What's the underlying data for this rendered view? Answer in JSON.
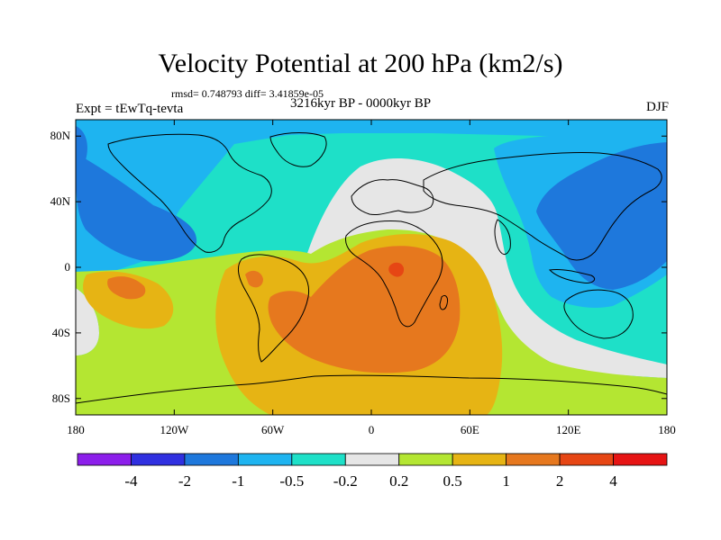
{
  "title": "Velocity Potential at 200 hPa (km2/s)",
  "stats": "rmsd= 0.748793 diff= 3.41859e-05",
  "period": "3216kyr BP - 0000kyr BP",
  "experiment": "Expt = tEwTq-tevta",
  "season": "DJF",
  "map": {
    "projection": "cylindrical equidistant",
    "lat_ticks": [
      {
        "value": 80,
        "label": "80N"
      },
      {
        "value": 40,
        "label": "40N"
      },
      {
        "value": 0,
        "label": "0"
      },
      {
        "value": -40,
        "label": "40S"
      },
      {
        "value": -80,
        "label": "80S"
      }
    ],
    "lon_ticks": [
      {
        "value": -180,
        "label": "180"
      },
      {
        "value": -120,
        "label": "120W"
      },
      {
        "value": -60,
        "label": "60W"
      },
      {
        "value": 0,
        "label": "0"
      },
      {
        "value": 60,
        "label": "60E"
      },
      {
        "value": 120,
        "label": "120E"
      },
      {
        "value": 180,
        "label": "180"
      }
    ]
  },
  "colorbar": {
    "colors": [
      "#8c1eea",
      "#3030e0",
      "#1e78dc",
      "#1eb4f0",
      "#1ee0c8",
      "#e6e6e6",
      "#b4e632",
      "#e6b414",
      "#e6781e",
      "#e64614",
      "#e61414"
    ],
    "labels": [
      "-4",
      "-2",
      "-1",
      "-0.5",
      "-0.2",
      "0.2",
      "0.5",
      "1",
      "2",
      "4"
    ]
  }
}
